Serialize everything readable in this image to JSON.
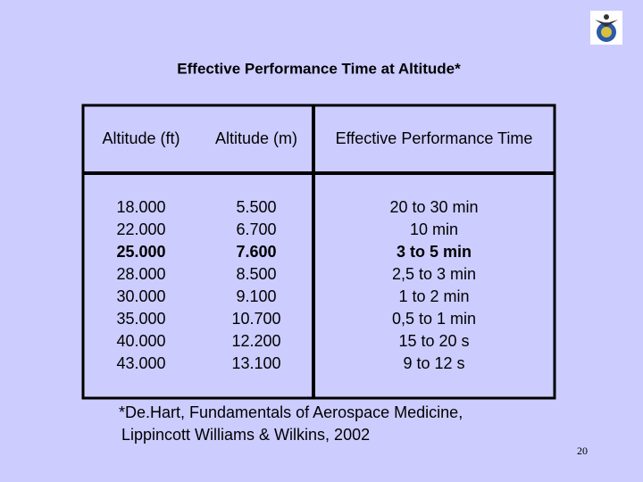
{
  "title": "Effective Performance Time at Altitude*",
  "table": {
    "header": [
      "Altitude (ft)",
      "Altitude (m)",
      "Effective Performance Time"
    ],
    "rows": [
      [
        "18.000",
        "5.500",
        "20 to 30 min"
      ],
      [
        "22.000",
        "6.700",
        "10 min"
      ],
      [
        "25.000",
        "7.600",
        "3 to 5 min"
      ],
      [
        "28.000",
        "8.500",
        "2,5 to 3 min"
      ],
      [
        "30.000",
        "9.100",
        "1 to 2 min"
      ],
      [
        "35.000",
        "10.700",
        "0,5 to 1 min"
      ],
      [
        "40.000",
        "12.200",
        "15 to 20 s"
      ],
      [
        "43.000",
        "13.100",
        "9 to 12 s"
      ]
    ],
    "highlight_row": 2,
    "highlight_color": "#e8141c"
  },
  "footnote": [
    "*De.Hart, Fundamentals of Aerospace Medicine,",
    "Lippincott Williams & Wilkins, 2002"
  ],
  "page_number": "20"
}
